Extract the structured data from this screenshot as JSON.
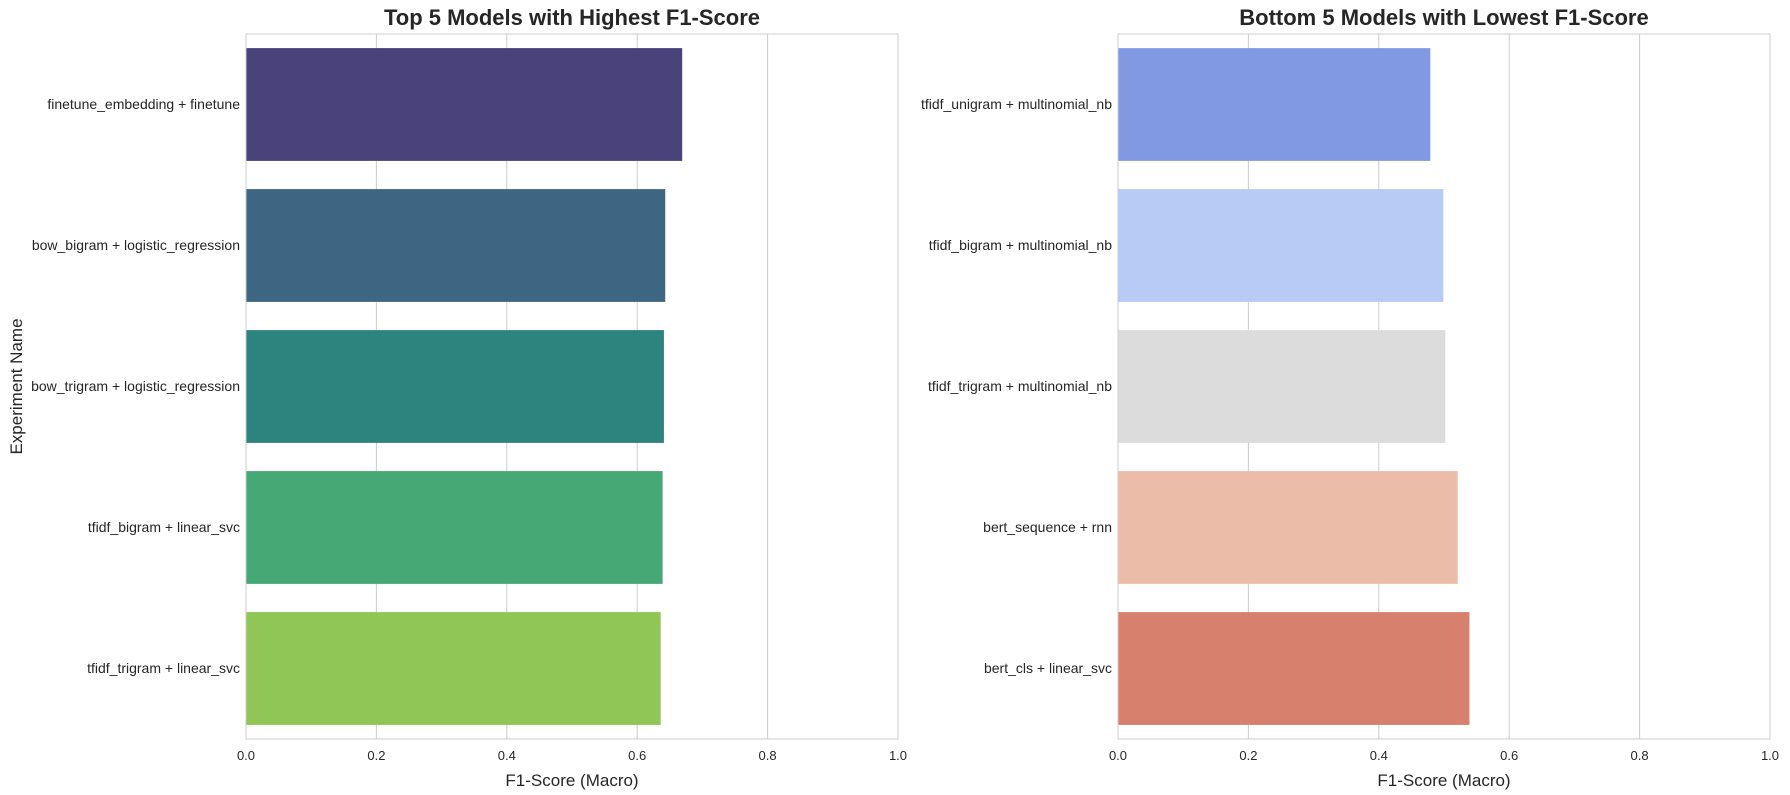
{
  "chart_data": [
    {
      "type": "bar",
      "orientation": "horizontal",
      "title": "Top 5 Models with Highest F1-Score",
      "xlabel": "F1-Score (Macro)",
      "ylabel": "Experiment Name",
      "xlim": [
        0,
        1.0
      ],
      "xticks": [
        "0.0",
        "0.2",
        "0.4",
        "0.6",
        "0.8",
        "1.0"
      ],
      "grid": true,
      "categories": [
        "finetune_embedding + finetune",
        "bow_bigram + logistic_regression",
        "bow_trigram + logistic_regression",
        "tfidf_bigram + linear_svc",
        "tfidf_trigram + linear_svc"
      ],
      "values": [
        0.669,
        0.643,
        0.641,
        0.639,
        0.636
      ],
      "colors": [
        "#4a427a",
        "#3d6682",
        "#2d847f",
        "#45a875",
        "#8fc656"
      ]
    },
    {
      "type": "bar",
      "orientation": "horizontal",
      "title": "Bottom 5 Models with Lowest F1-Score",
      "xlabel": "F1-Score (Macro)",
      "ylabel": "",
      "xlim": [
        0,
        1.0
      ],
      "xticks": [
        "0.0",
        "0.2",
        "0.4",
        "0.6",
        "0.8",
        "1.0"
      ],
      "grid": true,
      "categories": [
        "tfidf_unigram + multinomial_nb",
        "tfidf_bigram + multinomial_nb",
        "tfidf_trigram + multinomial_nb",
        "bert_sequence + rnn",
        "bert_cls + linear_svc"
      ],
      "values": [
        0.479,
        0.499,
        0.502,
        0.521,
        0.539
      ],
      "colors": [
        "#8199e3",
        "#b7cbf4",
        "#dcdcdc",
        "#ebbda8",
        "#d6806d"
      ]
    }
  ]
}
